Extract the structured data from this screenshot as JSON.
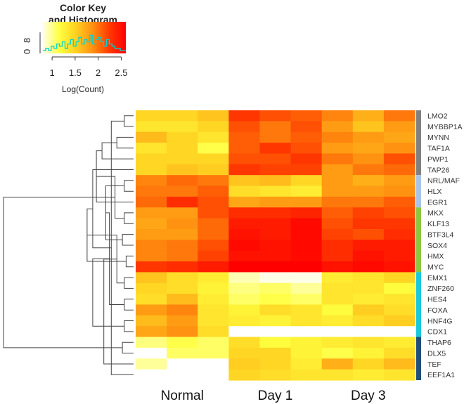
{
  "chart_data": {
    "type": "heatmap",
    "color_key": {
      "title_lines": [
        "Color Key",
        "and Histogram"
      ],
      "x_ticks": [
        "1",
        "1.5",
        "2",
        "2.5"
      ],
      "x_tick_values": [
        1,
        1.5,
        2,
        2.5
      ],
      "x_range": [
        0.8,
        2.6
      ],
      "y_ticks": [
        "0",
        "8"
      ],
      "xlabel": "Log(Count)",
      "colors": [
        "#ffffe8",
        "#ffff40",
        "#ffd020",
        "#ff9010",
        "#ff3a00",
        "#ff0000"
      ],
      "histogram": [
        1,
        2,
        1,
        3,
        2,
        4,
        3,
        5,
        2,
        4,
        6,
        3,
        5,
        7,
        4,
        6,
        5,
        8,
        4,
        6,
        7,
        5,
        3,
        6,
        4,
        3,
        2,
        2,
        1,
        1
      ],
      "histogram_color": "#00d4d4"
    },
    "rows": [
      "LMO2",
      "MYBBP1A",
      "MYNN",
      "TAF1A",
      "PWP1",
      "TAP26",
      "NRL/MAF",
      "HLX",
      "EGR1",
      "MKX",
      "KLF13",
      "BTF3L4",
      "SOX4",
      "HMX",
      "MYC",
      "EMX1",
      "ZNF260",
      "HES4",
      "FOXA",
      "HNF4G",
      "CDX1",
      "THAP6",
      "DLX5",
      "TEF",
      "EEF1A1"
    ],
    "column_groups": [
      "Normal",
      "Day 1",
      "Day 3"
    ],
    "columns_per_group": 3,
    "values": [
      [
        1.9,
        1.9,
        2.0,
        2.6,
        2.5,
        2.45,
        2.3,
        2.1,
        2.35
      ],
      [
        1.8,
        1.8,
        1.9,
        2.5,
        2.35,
        2.5,
        2.2,
        2.0,
        2.2
      ],
      [
        2.05,
        1.9,
        1.8,
        2.45,
        2.35,
        2.45,
        2.3,
        2.2,
        2.15
      ],
      [
        1.8,
        1.9,
        1.6,
        2.45,
        2.6,
        2.5,
        2.2,
        2.15,
        2.25
      ],
      [
        1.9,
        1.9,
        1.9,
        2.5,
        2.5,
        2.6,
        2.35,
        2.25,
        2.5
      ],
      [
        1.9,
        2.0,
        1.95,
        2.6,
        2.55,
        2.55,
        2.2,
        2.35,
        2.4
      ],
      [
        2.3,
        2.4,
        2.35,
        2.0,
        2.05,
        1.9,
        2.2,
        2.1,
        2.2
      ],
      [
        2.35,
        2.35,
        2.45,
        1.85,
        1.8,
        1.75,
        2.2,
        2.2,
        2.25
      ],
      [
        2.4,
        2.65,
        2.5,
        2.15,
        2.2,
        2.2,
        2.35,
        2.35,
        2.45
      ],
      [
        2.2,
        2.2,
        2.5,
        2.65,
        2.65,
        2.7,
        2.45,
        2.55,
        2.5
      ],
      [
        2.15,
        2.25,
        2.4,
        2.75,
        2.75,
        2.85,
        2.5,
        2.6,
        2.6
      ],
      [
        2.2,
        2.2,
        2.4,
        2.8,
        2.75,
        2.85,
        2.55,
        2.5,
        2.65
      ],
      [
        2.3,
        2.35,
        2.5,
        2.85,
        2.8,
        2.85,
        2.65,
        2.75,
        2.75
      ],
      [
        2.3,
        2.35,
        2.55,
        2.8,
        2.8,
        2.85,
        2.65,
        2.8,
        2.75
      ],
      [
        2.6,
        2.65,
        2.75,
        2.9,
        2.9,
        2.9,
        2.8,
        2.85,
        2.8
      ],
      [
        2.0,
        1.85,
        1.75,
        1.4,
        1.3,
        1.3,
        1.75,
        1.8,
        1.9
      ],
      [
        1.9,
        1.85,
        1.7,
        1.5,
        1.55,
        1.45,
        1.8,
        1.8,
        1.65
      ],
      [
        1.85,
        2.05,
        1.75,
        1.55,
        1.6,
        1.55,
        1.8,
        1.75,
        1.8
      ],
      [
        2.2,
        2.3,
        1.8,
        1.7,
        1.85,
        1.8,
        1.65,
        1.95,
        1.85
      ],
      [
        2.05,
        2.2,
        1.8,
        1.75,
        1.7,
        1.8,
        1.75,
        1.85,
        1.95
      ],
      [
        2.15,
        2.25,
        1.85,
        null,
        null,
        null,
        null,
        null,
        null
      ],
      [
        1.5,
        1.6,
        1.55,
        1.85,
        1.65,
        1.7,
        1.75,
        1.8,
        1.75
      ],
      [
        null,
        1.55,
        1.55,
        1.9,
        1.9,
        1.7,
        1.6,
        1.7,
        1.85
      ],
      [
        1.45,
        null,
        null,
        1.95,
        1.9,
        1.75,
        2.1,
        1.9,
        2.05
      ],
      [
        null,
        null,
        null,
        1.9,
        1.85,
        1.8,
        1.8,
        1.75,
        1.8
      ]
    ],
    "row_color_bar": {
      "groups": [
        {
          "rows": 6,
          "color": "#808080"
        },
        {
          "rows": 3,
          "color": "#a8c4e8"
        },
        {
          "rows": 6,
          "color": "#8dc63f"
        },
        {
          "rows": 6,
          "color": "#18c8e0"
        },
        {
          "rows": 4,
          "color": "#1f4e79"
        }
      ]
    },
    "row_dendrogram": [
      [
        0,
        1,
        0.05
      ],
      [
        2,
        3,
        0.09
      ],
      [
        24,
        25,
        0.12
      ],
      [
        4,
        26,
        0.17
      ],
      [
        5,
        27,
        0.22
      ],
      [
        6,
        7,
        0.05
      ],
      [
        28,
        8,
        0.2
      ],
      [
        9,
        10,
        0.05
      ],
      [
        11,
        12,
        0.06
      ],
      [
        13,
        14,
        0.04
      ],
      [
        31,
        32,
        0.1
      ],
      [
        30,
        33,
        0.15
      ],
      [
        34,
        29,
        0.25
      ],
      [
        15,
        16,
        0.05
      ],
      [
        17,
        18,
        0.05
      ],
      [
        19,
        20,
        0.05
      ],
      [
        37,
        38,
        0.09
      ],
      [
        36,
        39,
        0.13
      ],
      [
        21,
        22,
        0.06
      ],
      [
        23,
        41,
        0.16
      ],
      [
        40,
        42,
        0.22
      ],
      [
        43,
        35,
        0.7
      ],
      [
        44,
        26,
        0.0
      ]
    ]
  }
}
